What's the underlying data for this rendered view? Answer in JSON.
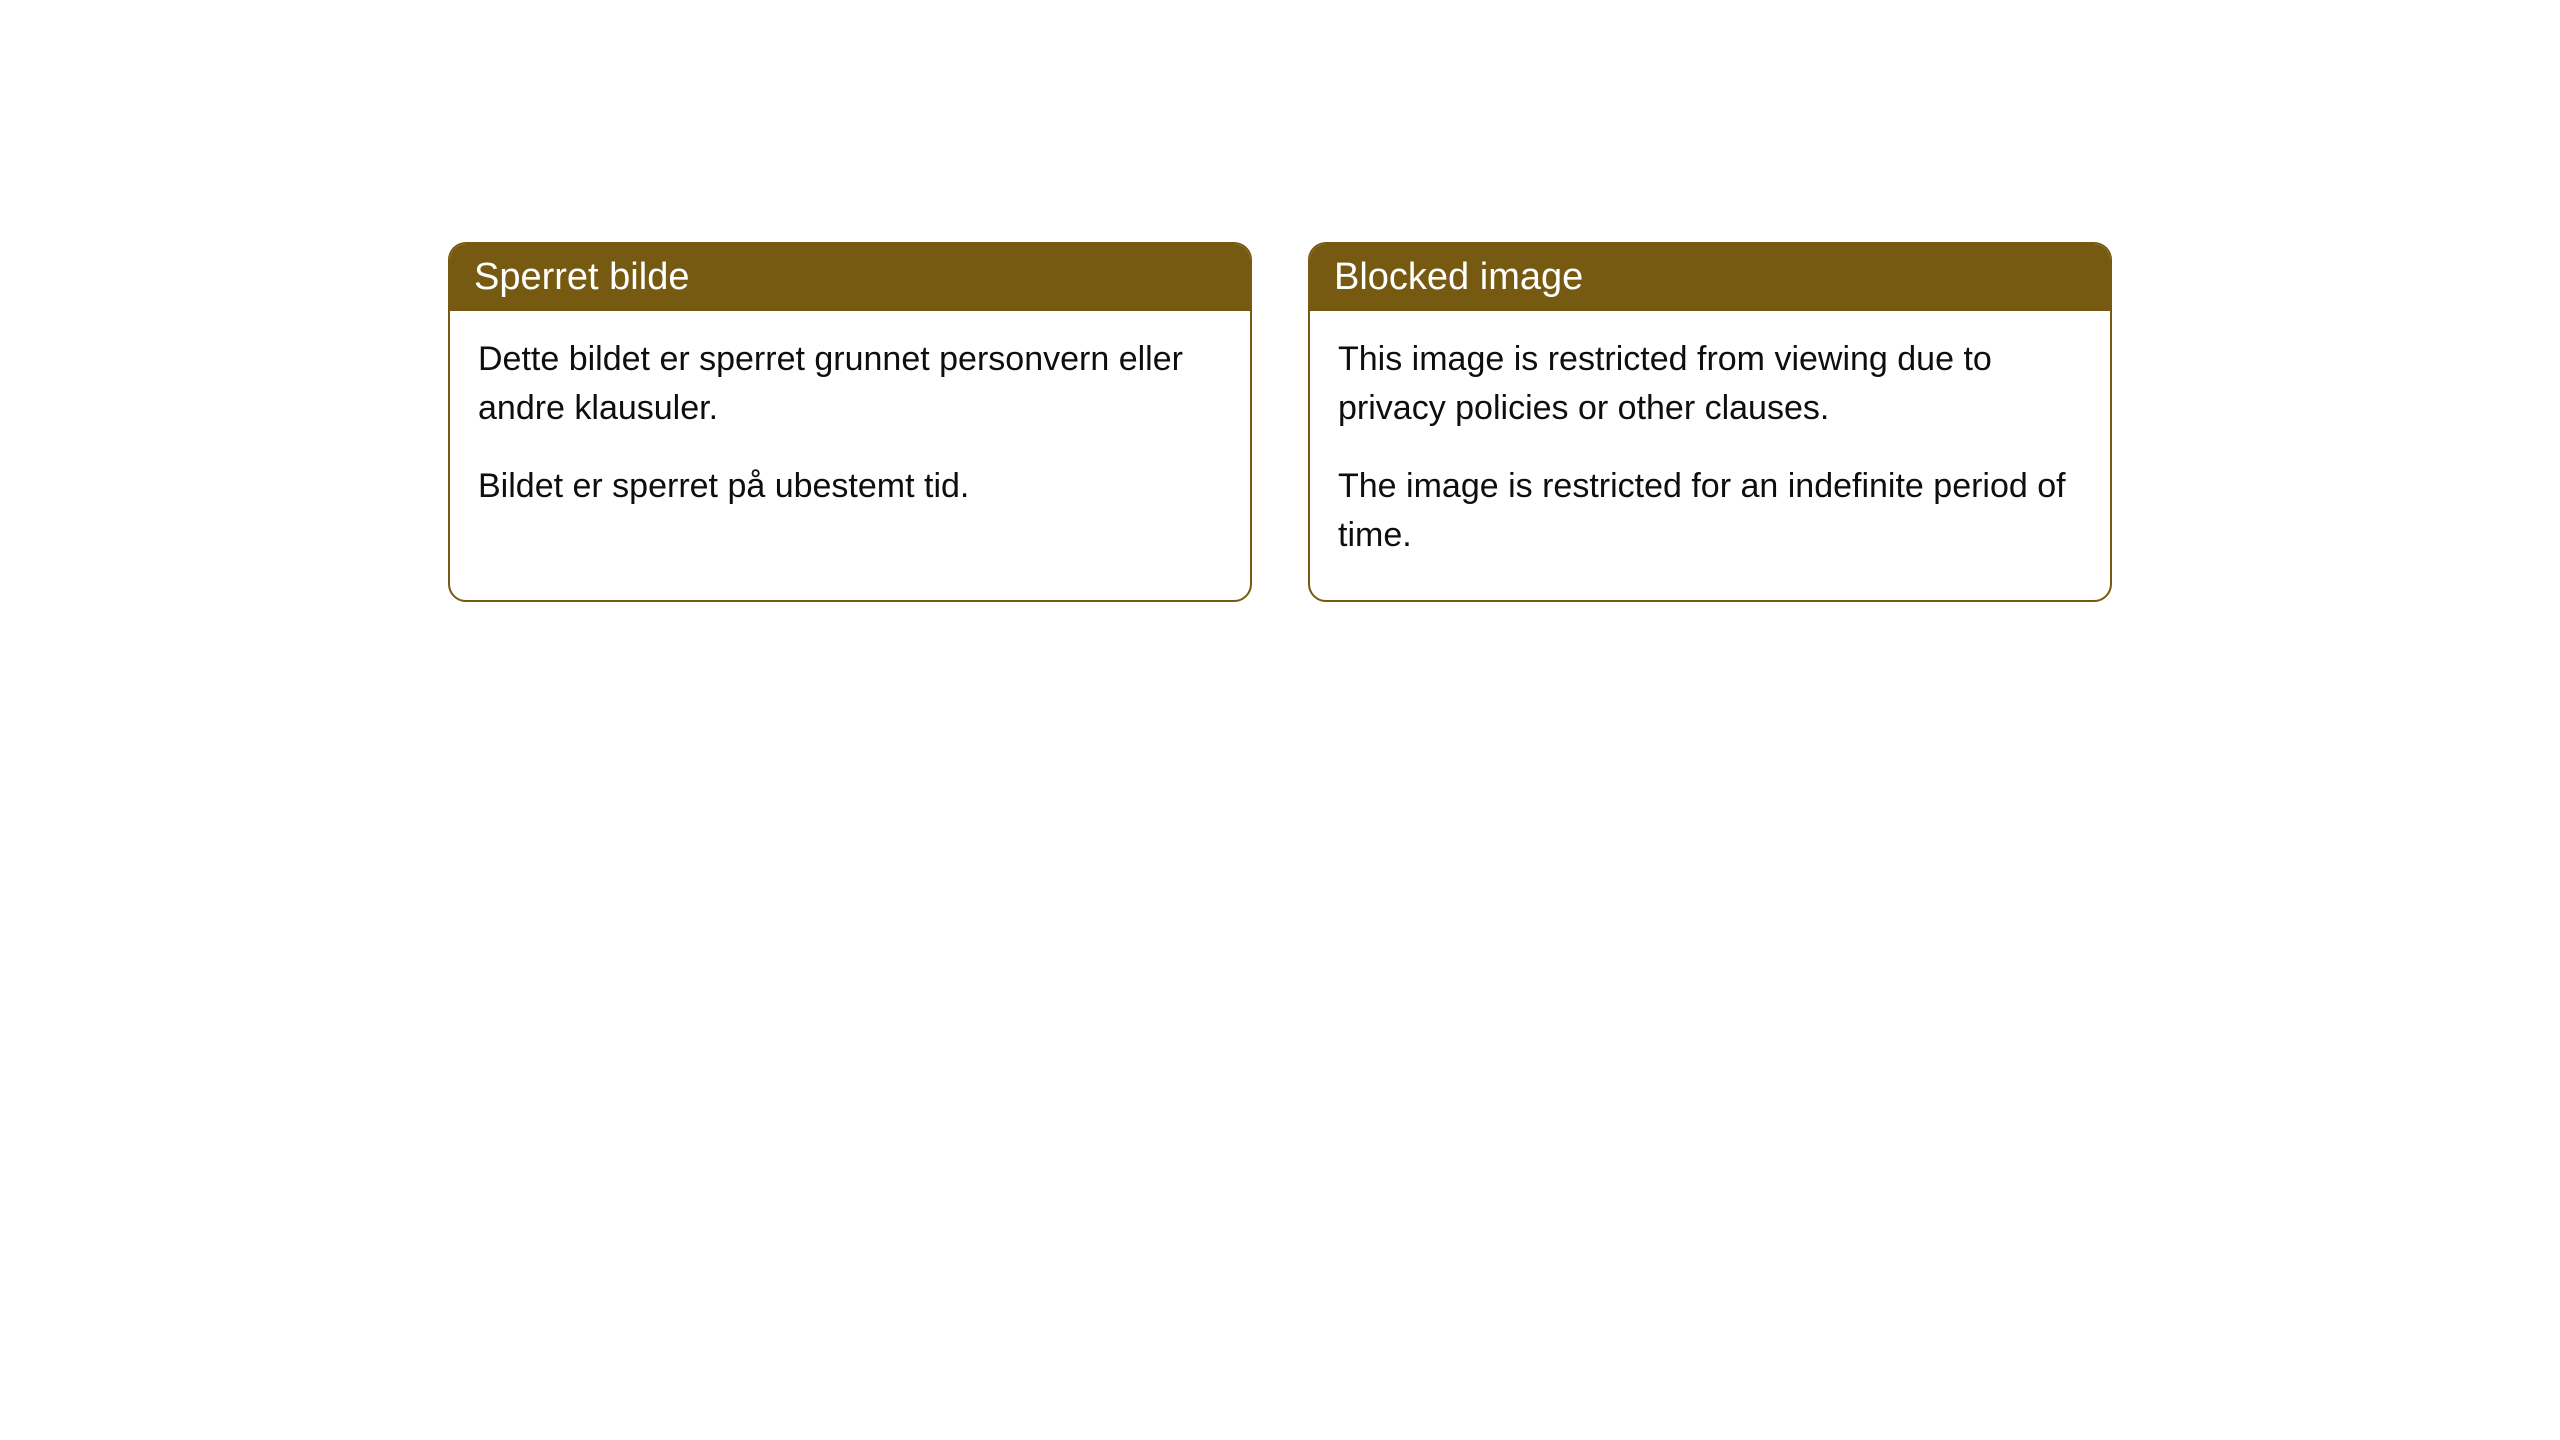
{
  "cards": [
    {
      "title": "Sperret bilde",
      "paragraph1": "Dette bildet er sperret grunnet personvern eller andre klausuler.",
      "paragraph2": "Bildet er sperret på ubestemt tid."
    },
    {
      "title": "Blocked image",
      "paragraph1": "This image is restricted from viewing due to privacy policies or other clauses.",
      "paragraph2": "The image is restricted for an indefinite period of time."
    }
  ],
  "styling": {
    "header_background": "#775a12",
    "header_text_color": "#ffffff",
    "border_color": "#775a12",
    "body_text_color": "#0e0e0e",
    "page_background": "#ffffff",
    "border_radius": 18,
    "header_fontsize": 38,
    "body_fontsize": 34
  }
}
